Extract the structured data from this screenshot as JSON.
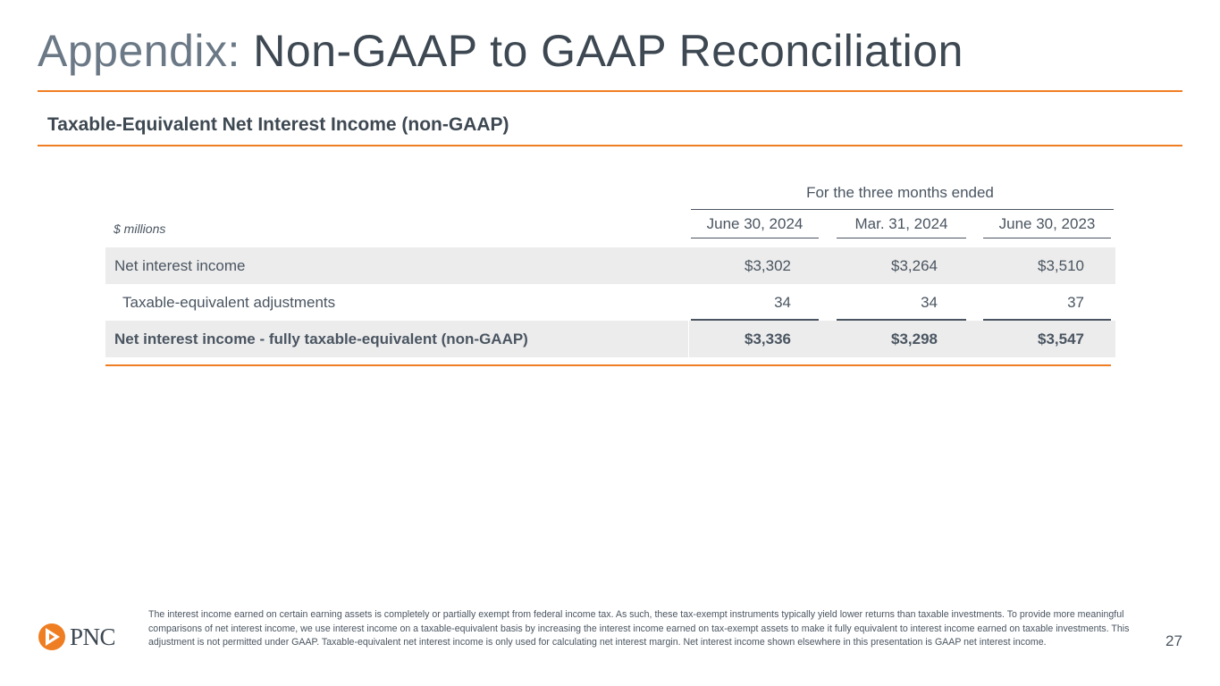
{
  "title": {
    "prefix": "Appendix: ",
    "main": "Non-GAAP to GAAP Reconciliation"
  },
  "subtitle": "Taxable-Equivalent Net Interest Income (non-GAAP)",
  "table": {
    "group_header": "For the three months ended",
    "units": "$ millions",
    "columns": [
      "June 30, 2024",
      "Mar. 31, 2024",
      "June 30, 2023"
    ],
    "rows": [
      {
        "label": "Net interest income",
        "values": [
          "$3,302",
          "$3,264",
          "$3,510"
        ]
      },
      {
        "label": "Taxable-equivalent adjustments",
        "values": [
          "34",
          "34",
          "37"
        ]
      },
      {
        "label": "Net interest income - fully taxable-equivalent  (non-GAAP)",
        "values": [
          "$3,336",
          "$3,298",
          "$3,547"
        ]
      }
    ]
  },
  "footnote": "The interest income earned on certain earning assets is completely or partially exempt from federal income tax. As such, these tax-exempt instruments typically yield lower returns than taxable investments. To provide more meaningful comparisons of net interest income, we use interest income on a taxable-equivalent basis by increasing the interest income earned on tax-exempt assets to make it fully equivalent to interest income earned on taxable investments. This adjustment is not permitted under GAAP. Taxable-equivalent net interest income is only used for calculating net interest margin. Net interest income shown elsewhere in this presentation is GAAP net interest income.",
  "logo": {
    "text": "PNC"
  },
  "page_number": "27",
  "colors": {
    "accent": "#ef7d22",
    "text": "#4a5561",
    "shade": "#ececec"
  }
}
